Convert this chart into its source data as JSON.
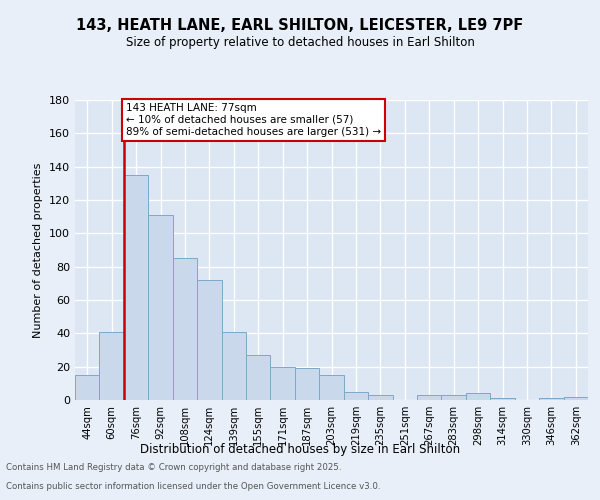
{
  "title": "143, HEATH LANE, EARL SHILTON, LEICESTER, LE9 7PF",
  "subtitle": "Size of property relative to detached houses in Earl Shilton",
  "xlabel": "Distribution of detached houses by size in Earl Shilton",
  "ylabel": "Number of detached properties",
  "categories": [
    "44sqm",
    "60sqm",
    "76sqm",
    "92sqm",
    "108sqm",
    "124sqm",
    "139sqm",
    "155sqm",
    "171sqm",
    "187sqm",
    "203sqm",
    "219sqm",
    "235sqm",
    "251sqm",
    "267sqm",
    "283sqm",
    "298sqm",
    "314sqm",
    "330sqm",
    "346sqm",
    "362sqm"
  ],
  "values": [
    15,
    41,
    135,
    111,
    85,
    72,
    41,
    27,
    20,
    19,
    15,
    5,
    3,
    0,
    3,
    3,
    4,
    1,
    0,
    1,
    2
  ],
  "bar_color": "#c9d9eb",
  "bar_edge_color": "#7aaac8",
  "vline_x_index": 2,
  "vline_color": "#cc0000",
  "annotation_text_line1": "143 HEATH LANE: 77sqm",
  "annotation_text_line2": "← 10% of detached houses are smaller (57)",
  "annotation_text_line3": "89% of semi-detached houses are larger (531) →",
  "ylim": [
    0,
    180
  ],
  "yticks": [
    0,
    20,
    40,
    60,
    80,
    100,
    120,
    140,
    160,
    180
  ],
  "background_color": "#e8eff8",
  "plot_background_color": "#dce7f3",
  "grid_color": "#ffffff",
  "footer_line1": "Contains HM Land Registry data © Crown copyright and database right 2025.",
  "footer_line2": "Contains public sector information licensed under the Open Government Licence v3.0."
}
